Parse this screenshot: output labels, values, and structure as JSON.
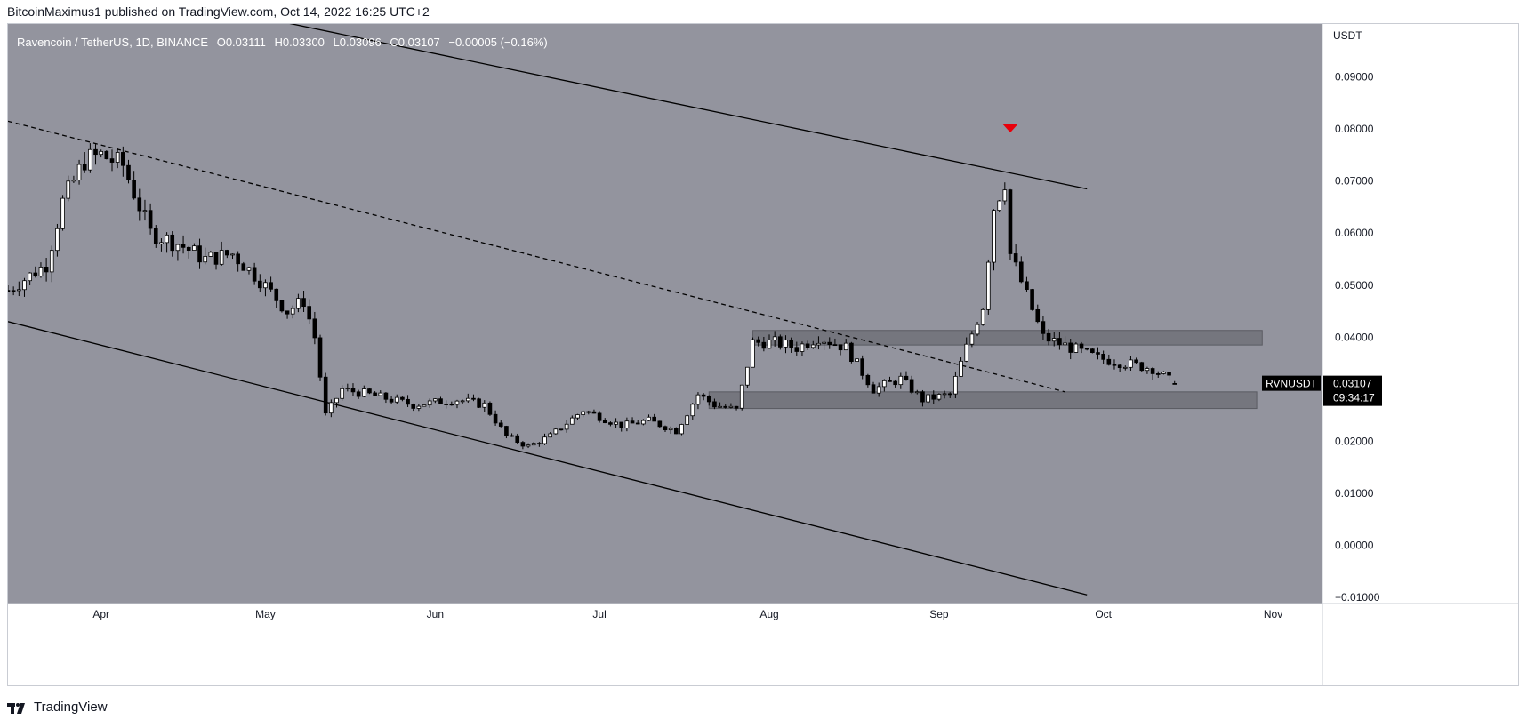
{
  "header": {
    "publisher_line": "BitcoinMaximus1 published on TradingView.com, Oct 14, 2022 16:25 UTC+2"
  },
  "legend": {
    "symbol": "Ravencoin / TetherUS, 1D, BINANCE",
    "o_label": "O",
    "o_value": "0.03111",
    "h_label": "H",
    "h_value": "0.03300",
    "l_label": "L",
    "l_value": "0.03096",
    "c_label": "C",
    "c_value": "0.03107",
    "change": "−0.00005 (−0.16%)"
  },
  "price_axis": {
    "currency": "USDT",
    "ticks": [
      "0.09000",
      "0.08000",
      "0.07000",
      "0.06000",
      "0.05000",
      "0.04000",
      "0.03000",
      "0.02000",
      "0.01000",
      "0.00000",
      "−0.01000"
    ]
  },
  "price_tag": {
    "symbol": "RVNUSDT",
    "price": "0.03107",
    "countdown": "09:34:17"
  },
  "time_axis": {
    "labels": [
      "Apr",
      "May",
      "Jun",
      "Jul",
      "Aug",
      "Sep",
      "Oct",
      "Nov"
    ]
  },
  "footer": {
    "brand": "TradingView"
  },
  "colors": {
    "chart_bg": "#93949e",
    "panel_bg": "#ffffff",
    "up_candle": "#ffffff",
    "down_candle": "#000000",
    "zone_fill": "#6b6c73",
    "marker": "#e8000b",
    "tag_bg": "#000000"
  },
  "chart_data": {
    "type": "candlestick",
    "title": "Ravencoin / TetherUS, 1D, BINANCE",
    "ylabel": "USDT",
    "ylim": [
      -0.011,
      0.1
    ],
    "x_range": [
      "2022-03-15",
      "2022-11-10"
    ],
    "grid": false,
    "price_path": [
      [
        "2022-03-15",
        0.049
      ],
      [
        "2022-03-22",
        0.054
      ],
      [
        "2022-03-25",
        0.066
      ],
      [
        "2022-03-29",
        0.074
      ],
      [
        "2022-04-01",
        0.075
      ],
      [
        "2022-04-05",
        0.073
      ],
      [
        "2022-04-10",
        0.06
      ],
      [
        "2022-04-15",
        0.058
      ],
      [
        "2022-04-20",
        0.055
      ],
      [
        "2022-04-25",
        0.056
      ],
      [
        "2022-04-30",
        0.051
      ],
      [
        "2022-05-05",
        0.045
      ],
      [
        "2022-05-08",
        0.047
      ],
      [
        "2022-05-10",
        0.04
      ],
      [
        "2022-05-12",
        0.025
      ],
      [
        "2022-05-15",
        0.03
      ],
      [
        "2022-05-20",
        0.029
      ],
      [
        "2022-05-28",
        0.027
      ],
      [
        "2022-06-05",
        0.028
      ],
      [
        "2022-06-10",
        0.027
      ],
      [
        "2022-06-14",
        0.021
      ],
      [
        "2022-06-18",
        0.019
      ],
      [
        "2022-06-22",
        0.021
      ],
      [
        "2022-06-28",
        0.026
      ],
      [
        "2022-07-05",
        0.023
      ],
      [
        "2022-07-10",
        0.024
      ],
      [
        "2022-07-15",
        0.022
      ],
      [
        "2022-07-19",
        0.029
      ],
      [
        "2022-07-22",
        0.027
      ],
      [
        "2022-07-26",
        0.026
      ],
      [
        "2022-07-29",
        0.039
      ],
      [
        "2022-08-02",
        0.039
      ],
      [
        "2022-08-06",
        0.038
      ],
      [
        "2022-08-10",
        0.04
      ],
      [
        "2022-08-15",
        0.038
      ],
      [
        "2022-08-20",
        0.03
      ],
      [
        "2022-08-25",
        0.032
      ],
      [
        "2022-08-29",
        0.028
      ],
      [
        "2022-09-03",
        0.029
      ],
      [
        "2022-09-06",
        0.038
      ],
      [
        "2022-09-09",
        0.046
      ],
      [
        "2022-09-11",
        0.065
      ],
      [
        "2022-09-13",
        0.07
      ],
      [
        "2022-09-14",
        0.056
      ],
      [
        "2022-09-17",
        0.048
      ],
      [
        "2022-09-20",
        0.04
      ],
      [
        "2022-09-25",
        0.038
      ],
      [
        "2022-09-30",
        0.036
      ],
      [
        "2022-10-05",
        0.035
      ],
      [
        "2022-10-10",
        0.034
      ],
      [
        "2022-10-14",
        0.03107
      ]
    ],
    "annotations": {
      "channel_upper": [
        [
          "2022-03-15",
          0.1115
        ],
        [
          "2022-09-28",
          0.0685
        ]
      ],
      "channel_lower": [
        [
          "2022-03-15",
          0.043
        ],
        [
          "2022-09-28",
          -0.0095
        ]
      ],
      "dashed_trendline": [
        [
          "2022-03-15",
          0.0815
        ],
        [
          "2022-09-24",
          0.0295
        ]
      ],
      "resistance_zone": {
        "from": "2022-07-29",
        "to": "2022-10-30",
        "low": 0.0385,
        "high": 0.0413
      },
      "support_zone": {
        "from": "2022-07-21",
        "to": "2022-10-29",
        "low": 0.0263,
        "high": 0.0295
      },
      "bearish_marker": {
        "date": "2022-09-14",
        "price": 0.08
      }
    }
  }
}
